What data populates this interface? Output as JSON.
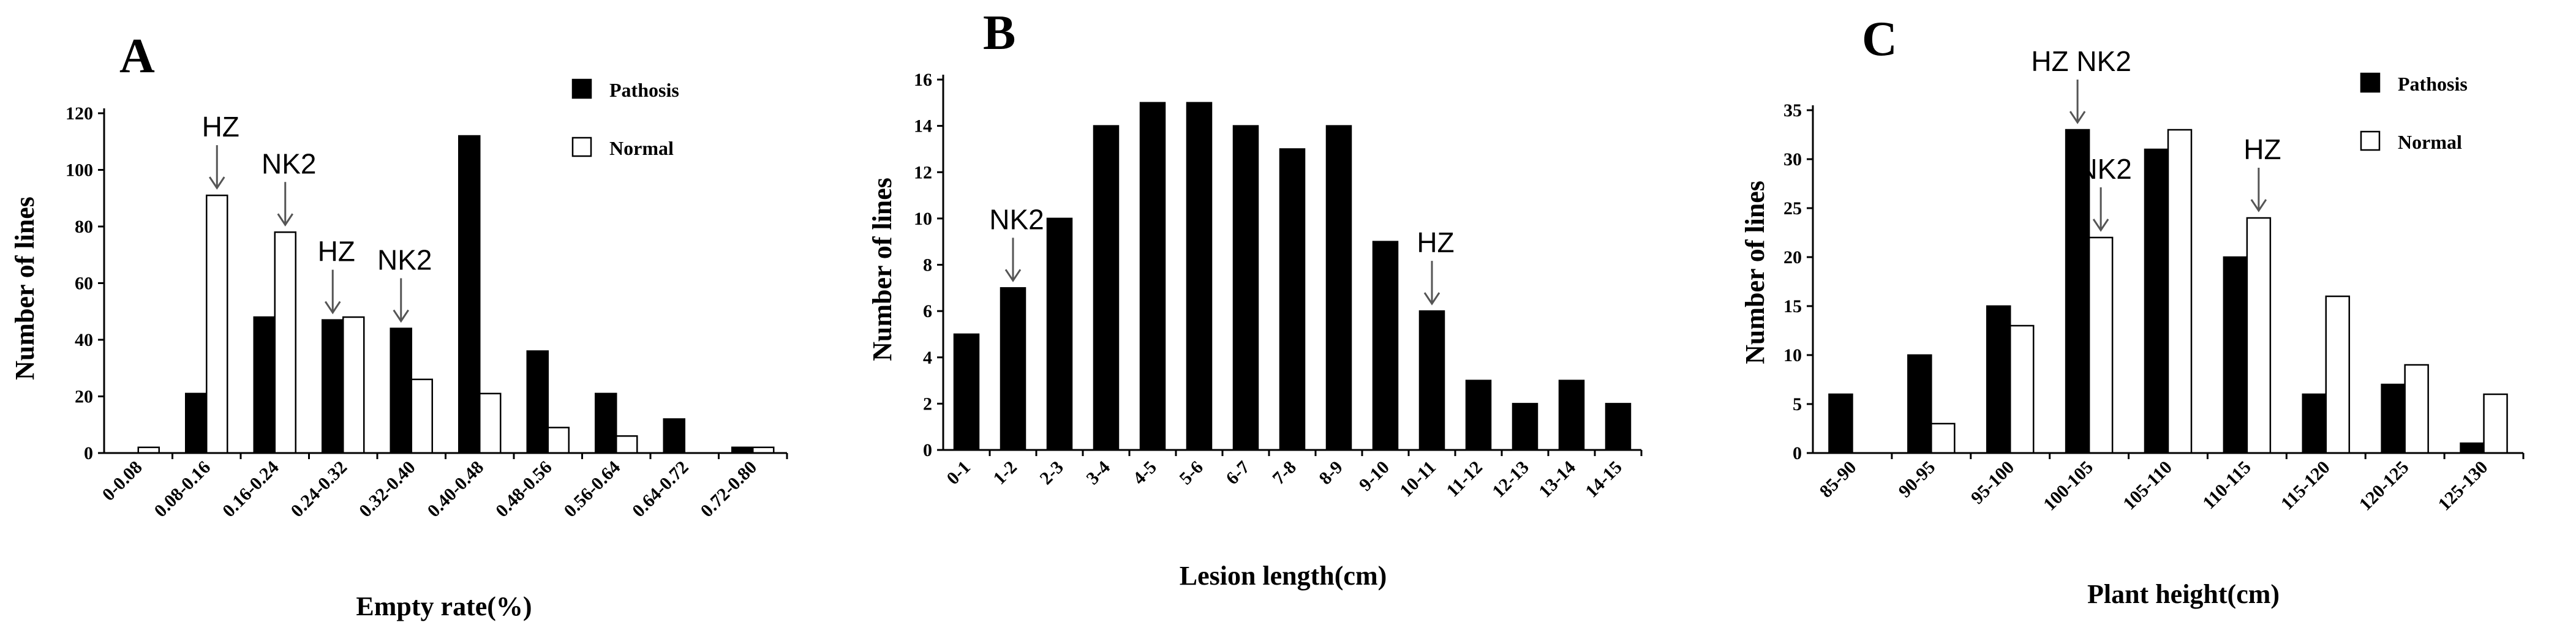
{
  "chart_data": [
    {
      "type": "bar",
      "panel": "A",
      "xlabel": "Empty rate(%)",
      "ylabel": "Number of lines",
      "ylim": [
        0,
        120
      ],
      "yticks": [
        "0",
        "20",
        "40",
        "60",
        "80",
        "100",
        "120"
      ],
      "categories": [
        "0-0.08",
        "0.08-0.16",
        "0.16-0.24",
        "0.24-0.32",
        "0.32-0.40",
        "0.40-0.48",
        "0.48-0.56",
        "0.56-0.64",
        "0.64-0.72",
        "0.72-0.80"
      ],
      "series": [
        {
          "name": "Pathosis",
          "color": "#000000",
          "values": [
            0,
            21,
            48,
            47,
            44,
            112,
            36,
            21,
            12,
            2
          ]
        },
        {
          "name": "Normal",
          "color": "#ffffff",
          "values": [
            2,
            91,
            78,
            48,
            26,
            21,
            9,
            6,
            0,
            2
          ]
        }
      ],
      "legend": "top-right",
      "annotations": [
        {
          "text": "HZ",
          "category": "0.08-0.16",
          "series": "Normal"
        },
        {
          "text": "NK2",
          "category": "0.16-0.24",
          "series": "Normal"
        },
        {
          "text": "HZ",
          "category": "0.24-0.32",
          "series": "Pathosis"
        },
        {
          "text": "NK2",
          "category": "0.32-0.40",
          "series": "Pathosis"
        }
      ]
    },
    {
      "type": "bar",
      "panel": "B",
      "xlabel": "Lesion length(cm)",
      "ylabel": "Number of lines",
      "ylim": [
        0,
        16
      ],
      "yticks": [
        "0",
        "2",
        "4",
        "6",
        "8",
        "10",
        "12",
        "14",
        "16"
      ],
      "categories": [
        "0-1",
        "1-2",
        "2-3",
        "3-4",
        "4-5",
        "5-6",
        "6-7",
        "7-8",
        "8-9",
        "9-10",
        "10-11",
        "11-12",
        "12-13",
        "13-14",
        "14-15"
      ],
      "series": [
        {
          "color": "#000000",
          "values": [
            5,
            7,
            10,
            14,
            15,
            15,
            14,
            13,
            14,
            9,
            6,
            3,
            2,
            3,
            2
          ]
        }
      ],
      "annotations": [
        {
          "text": "NK2",
          "category": "1-2",
          "series": 0
        },
        {
          "text": "HZ",
          "category": "10-11",
          "series": 0
        }
      ]
    },
    {
      "type": "bar",
      "panel": "C",
      "xlabel": "Plant height(cm)",
      "ylabel": "Number of lines",
      "ylim": [
        0,
        35
      ],
      "yticks": [
        "0",
        "5",
        "10",
        "15",
        "20",
        "25",
        "30",
        "35"
      ],
      "categories": [
        "85-90",
        "90-95",
        "95-100",
        "100-105",
        "105-110",
        "110-115",
        "115-120",
        "120-125",
        "125-130"
      ],
      "series": [
        {
          "name": "Pathosis",
          "color": "#000000",
          "values": [
            6,
            10,
            15,
            33,
            31,
            20,
            6,
            7,
            1
          ]
        },
        {
          "name": "Normal",
          "color": "#ffffff",
          "values": [
            0,
            3,
            13,
            22,
            33,
            24,
            16,
            9,
            6
          ]
        }
      ],
      "legend": "top-right",
      "annotations": [
        {
          "text": "HZ NK2",
          "category": "100-105",
          "series": "Pathosis"
        },
        {
          "text": "NK2",
          "category": "100-105",
          "series": "Normal"
        },
        {
          "text": "HZ",
          "category": "110-115",
          "series": "Normal"
        }
      ]
    }
  ]
}
